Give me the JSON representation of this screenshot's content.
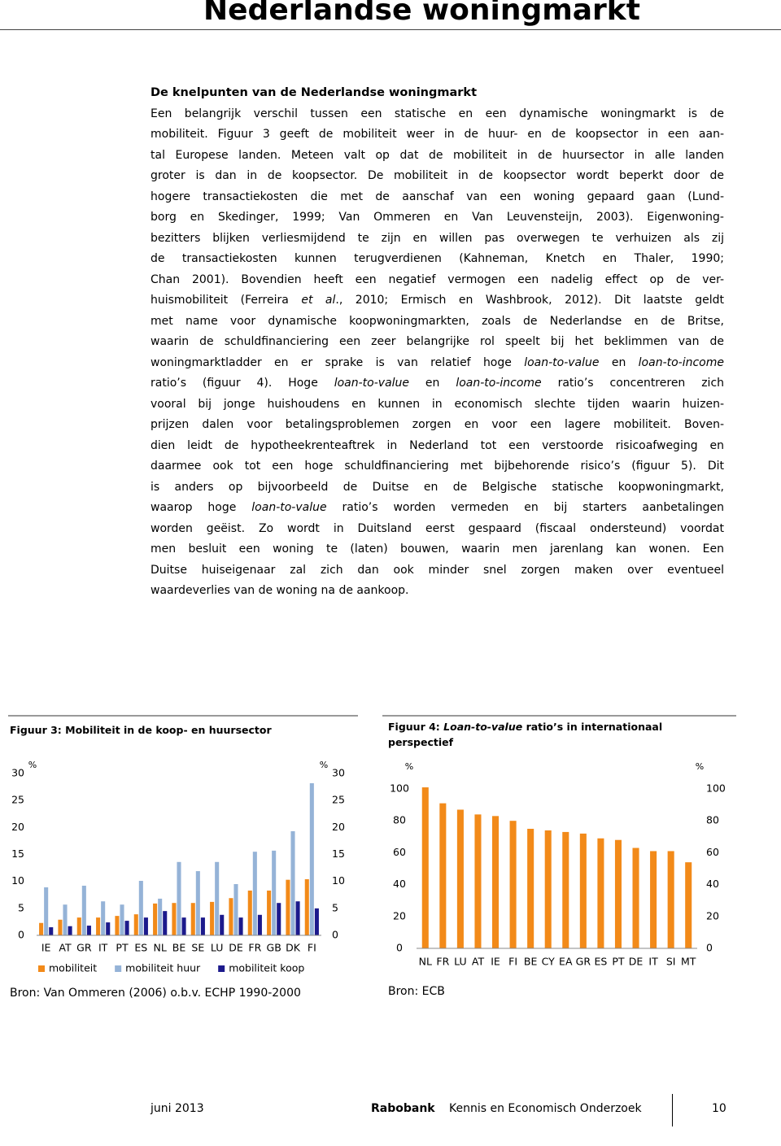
{
  "header": {
    "title": "Nederlandse woningmarkt"
  },
  "body": {
    "heading": "De knelpunten van de Nederlandse woningmarkt",
    "lines": [
      [
        "Een belangrijk verschil tussen een statische en een dynamische woningmarkt is de"
      ],
      [
        "mobiliteit. Figuur 3 geeft de mobiliteit weer in de huur- en de koopsector in een aan-"
      ],
      [
        "tal Europese landen. Meteen valt op dat de mobiliteit in de huursector in alle landen"
      ],
      [
        "groter is dan in de koopsector. De mobiliteit in de koopsector wordt beperkt door de"
      ],
      [
        "hogere transactiekosten die met de aanschaf van een woning gepaard gaan (Lund-"
      ],
      [
        "borg en Skedinger, 1999; Van Ommeren en Van Leuvensteijn, 2003). Eigenwoning-"
      ],
      [
        "bezitters blijken verliesmijdend te zijn en willen pas overwegen te verhuizen als zij"
      ],
      [
        "de transactiekosten kunnen terugverdienen (Kahneman, Knetch en Thaler, 1990;"
      ],
      [
        "Chan 2001). Bovendien heeft een negatief vermogen een nadelig effect op de ver-"
      ],
      [
        "huismobiliteit (Ferreira ",
        {
          "text": "et al",
          "italic": true
        },
        "., 2010; Ermisch en Washbrook, 2012). Dit laatste geldt"
      ],
      [
        "met name voor dynamische koopwoningmarkten, zoals de Nederlandse en de Britse,"
      ],
      [
        "waarin de schuldfinanciering een zeer belangrijke rol speelt bij het beklimmen van de"
      ],
      [
        "woningmarktladder en er sprake is van relatief hoge ",
        {
          "text": "loan-to-value",
          "italic": true
        },
        " en ",
        {
          "text": "loan-to-income",
          "italic": true
        }
      ],
      [
        "ratio’s (figuur 4). Hoge ",
        {
          "text": "loan-to-value",
          "italic": true
        },
        " en ",
        {
          "text": "loan-to-income",
          "italic": true
        },
        " ratio’s concentreren zich"
      ],
      [
        "vooral bij jonge huishoudens en kunnen in economisch slechte tijden waarin huizen-"
      ],
      [
        "prijzen dalen voor betalingsproblemen zorgen en voor een lagere mobiliteit. Boven-"
      ],
      [
        "dien leidt de hypotheekrenteaftrek in Nederland tot een verstoorde risicoafweging en"
      ],
      [
        "daarmee ook tot een hoge schuldfinanciering met bijbehorende risico’s (figuur 5). Dit"
      ],
      [
        "is anders op bijvoorbeeld de Duitse en de Belgische statische koopwoningmarkt,"
      ],
      [
        "waarop hoge ",
        {
          "text": "loan-to-value",
          "italic": true
        },
        " ratio’s worden vermeden en bij starters aanbetalingen"
      ],
      [
        "worden geëist. Zo wordt in Duitsland eerst gespaard (fiscaal ondersteund) voordat"
      ],
      [
        "men besluit een woning te (laten) bouwen, waarin men jarenlang kan wonen. Een"
      ],
      [
        "Duitse huiseigenaar zal zich dan ook minder snel zorgen maken over eventueel"
      ],
      [
        "waardeverlies van de woning na de aankoop."
      ]
    ]
  },
  "chart_data": [
    {
      "type": "bar",
      "title": [
        "Figuur 3: Mobiliteit in de koop- en huursector"
      ],
      "y_unit": "%",
      "categories": [
        "IE",
        "AT",
        "GR",
        "IT",
        "PT",
        "ES",
        "NL",
        "BE",
        "SE",
        "LU",
        "DE",
        "FR",
        "GB",
        "DK",
        "FI"
      ],
      "series": [
        {
          "name": "mobiliteit",
          "color": "#f28a19",
          "values": [
            2.3,
            2.9,
            3.3,
            3.3,
            3.6,
            3.9,
            5.9,
            6.0,
            6.0,
            6.2,
            6.9,
            8.3,
            8.3,
            10.3,
            10.4
          ]
        },
        {
          "name": "mobiliteit huur",
          "color": "#95b3d7",
          "values": [
            8.9,
            5.7,
            9.2,
            6.3,
            5.7,
            10.1,
            6.8,
            13.6,
            11.9,
            13.6,
            9.5,
            15.5,
            15.7,
            19.3,
            28.2
          ]
        },
        {
          "name": "mobiliteit koop",
          "color": "#1c1a8c",
          "values": [
            1.5,
            1.7,
            1.8,
            2.4,
            2.7,
            3.3,
            4.5,
            3.3,
            3.3,
            3.8,
            3.3,
            3.8,
            6.0,
            6.3,
            5.0
          ]
        }
      ],
      "ylim": [
        0,
        30
      ],
      "yticks": [
        0,
        5,
        10,
        15,
        20,
        25,
        30
      ],
      "source": "Bron: Van Ommeren (2006) o.b.v. ECHP 1990-2000"
    },
    {
      "type": "bar",
      "title": [
        "Figuur 4: ",
        {
          "text": "Loan-to-value",
          "italic": true
        },
        " ratio’s in internationaal perspectief"
      ],
      "y_unit": "%",
      "categories": [
        "NL",
        "FR",
        "LU",
        "AT",
        "IE",
        "FI",
        "BE",
        "CY",
        "EA",
        "GR",
        "ES",
        "PT",
        "DE",
        "IT",
        "SI",
        "MT"
      ],
      "values": [
        101,
        91,
        87,
        84,
        83,
        80,
        75,
        74,
        73,
        72,
        69,
        68,
        63,
        61,
        61,
        54
      ],
      "color": "#f28a19",
      "ylim": [
        0,
        110
      ],
      "yticks": [
        0,
        20,
        40,
        60,
        80,
        100
      ],
      "source": "Bron: ECB"
    }
  ],
  "footer": {
    "date": "juni 2013",
    "brand": "Rabobank",
    "department": "Kennis en Economisch Onderzoek",
    "page": "10"
  }
}
